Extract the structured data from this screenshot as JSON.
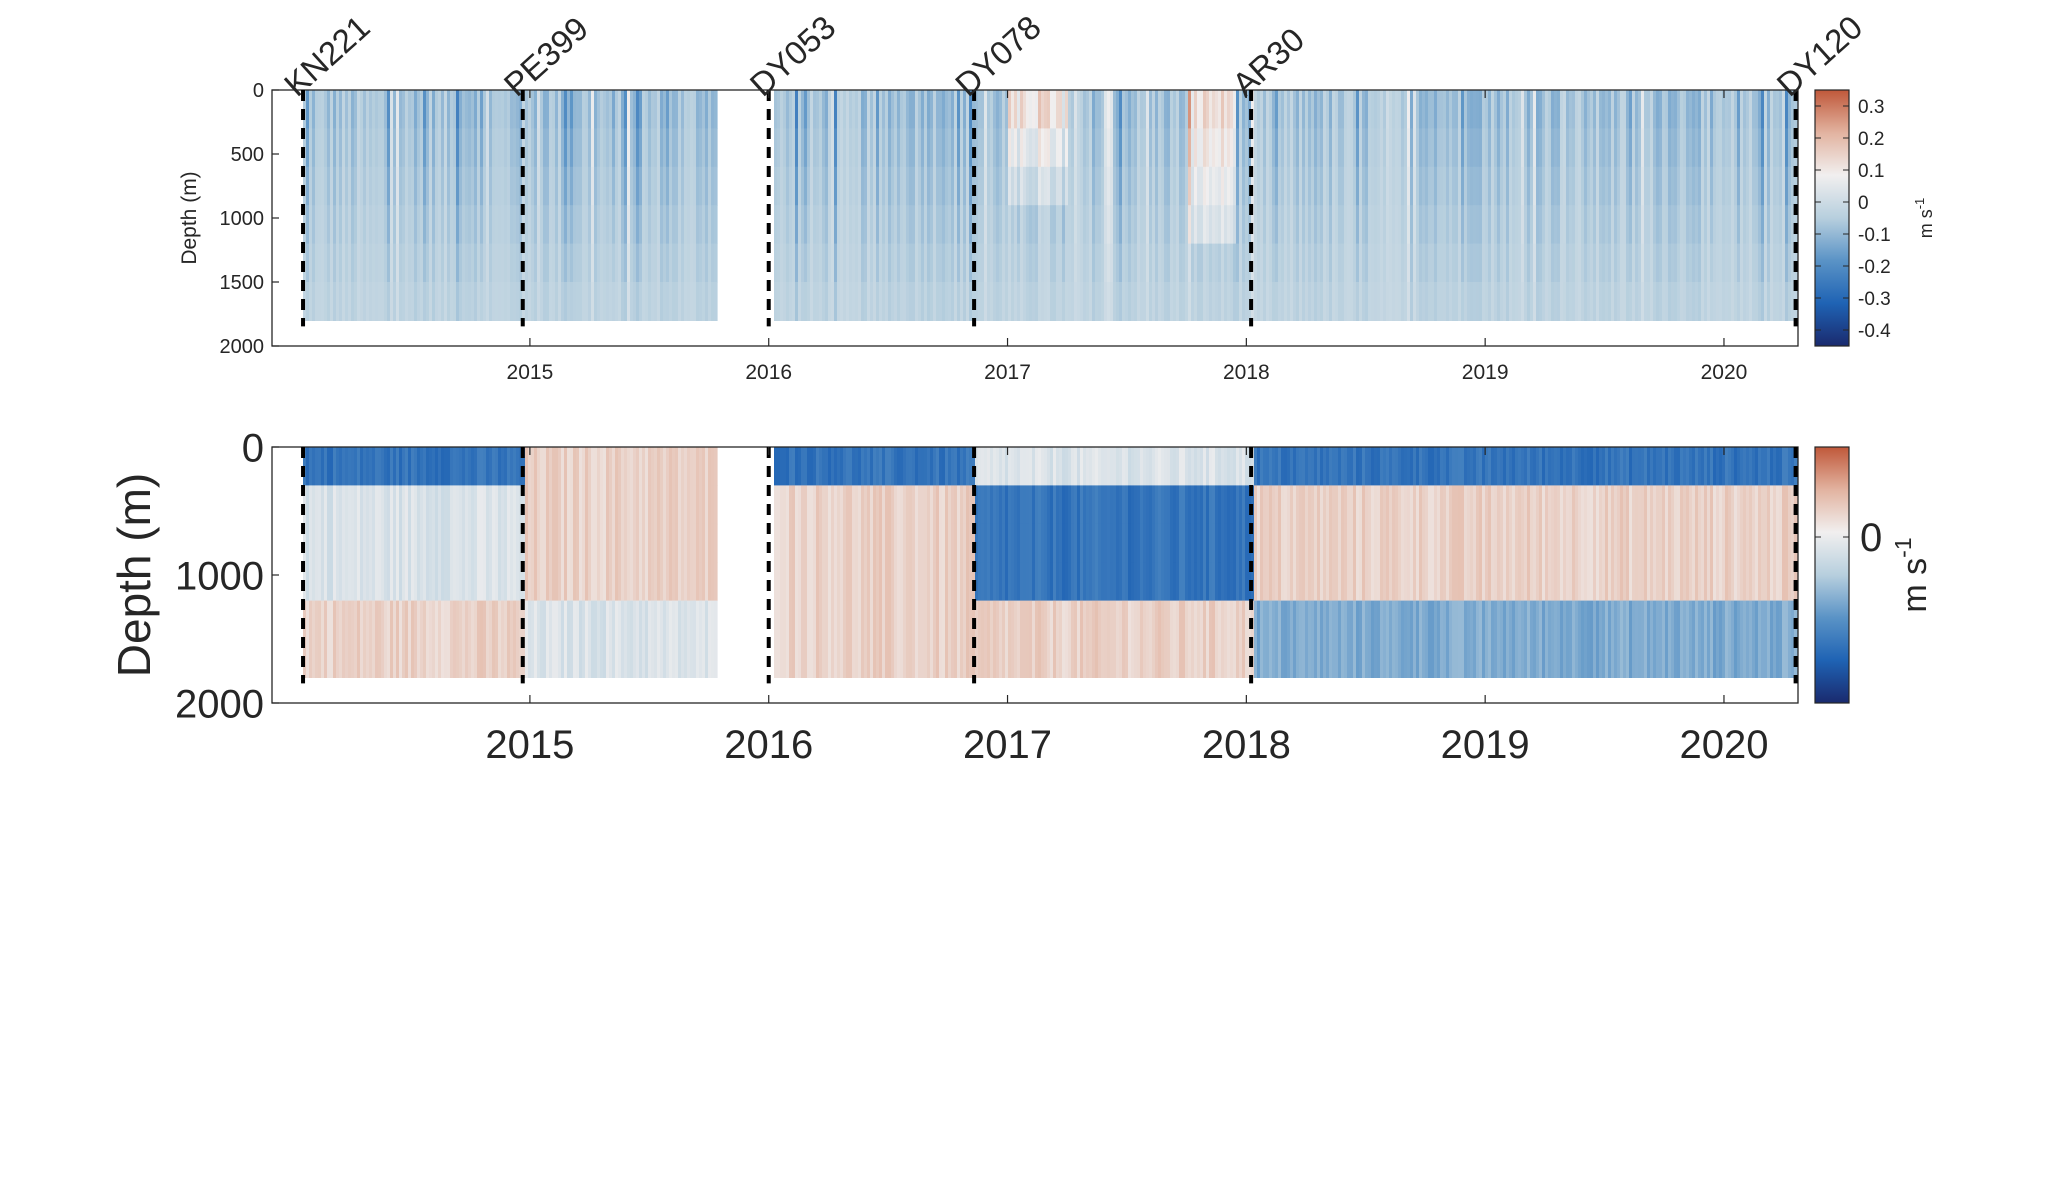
{
  "chart_data": [
    {
      "type": "heatmap",
      "title": "",
      "xlabel": "",
      "ylabel": "Depth (m)",
      "xlim": [
        2014.42,
        2020.81
      ],
      "ylim": [
        0,
        2000
      ],
      "y_reversed": true,
      "x_ticks": [
        "2015",
        "2016",
        "2017",
        "2018",
        "2019",
        "2020"
      ],
      "y_ticks": [
        "0",
        "500",
        "1000",
        "1500",
        "2000"
      ],
      "data_gaps": [
        [
          2016.28,
          2016.51
        ]
      ],
      "data_max_depth_m": 1800,
      "cruises": [
        {
          "name": "KN221",
          "x": 2014.55
        },
        {
          "name": "PE399",
          "x": 2015.47
        },
        {
          "name": "DY053",
          "x": 2016.5
        },
        {
          "name": "DY078",
          "x": 2017.36
        },
        {
          "name": "AR30",
          "x": 2018.52
        },
        {
          "name": "DY120",
          "x": 2020.8
        }
      ],
      "colorbar": {
        "label": "m s",
        "label_superscript": "-1",
        "range": [
          -0.45,
          0.35
        ],
        "ticks": [
          "0.3",
          "0.2",
          "0.1",
          "0",
          "-0.1",
          "-0.2",
          "-0.3",
          "-0.4"
        ],
        "colormap": [
          "#1a2a6e",
          "#1f63b4",
          "#5a93c6",
          "#b7cfde",
          "#f1efef",
          "#e2b3a0",
          "#c0583a"
        ]
      },
      "features": [
        {
          "x_range": [
            2018.25,
            2018.45
          ],
          "depth_range": [
            0,
            1300
          ],
          "sign": "positive"
        },
        {
          "x_range": [
            2017.5,
            2017.75
          ],
          "depth_range": [
            0,
            800
          ],
          "sign": "positive"
        }
      ]
    },
    {
      "type": "heatmap",
      "title": "",
      "xlabel": "",
      "ylabel": "Depth (m)",
      "xlim": [
        2014.42,
        2020.81
      ],
      "ylim": [
        0,
        2000
      ],
      "y_reversed": true,
      "x_ticks": [
        "2015",
        "2016",
        "2017",
        "2018",
        "2019",
        "2020"
      ],
      "y_ticks": [
        "0",
        "1000",
        "2000"
      ],
      "data_gaps": [
        [
          2016.28,
          2016.51
        ]
      ],
      "data_max_depth_m": 1800,
      "cruises": [
        {
          "name": "",
          "x": 2014.55
        },
        {
          "name": "",
          "x": 2015.47
        },
        {
          "name": "",
          "x": 2016.5
        },
        {
          "name": "",
          "x": 2017.36
        },
        {
          "name": "",
          "x": 2018.52
        },
        {
          "name": "",
          "x": 2020.8
        }
      ],
      "colorbar": {
        "label": "m s",
        "label_superscript": "-1",
        "ticks": [
          "0"
        ],
        "colormap": [
          "#1a2a6e",
          "#1f63b4",
          "#5a93c6",
          "#b7cfde",
          "#f1efef",
          "#e2b3a0",
          "#c0583a"
        ]
      },
      "segments": [
        {
          "x_range": [
            2014.55,
            2015.47
          ],
          "surface": "negative",
          "interior": "weak-positive",
          "deep": "positive"
        },
        {
          "x_range": [
            2015.47,
            2016.28
          ],
          "surface": "positive",
          "interior": "positive",
          "deep": "weak-positive"
        },
        {
          "x_range": [
            2016.51,
            2017.36
          ],
          "surface": "negative",
          "interior": "positive",
          "deep": "positive"
        },
        {
          "x_range": [
            2017.36,
            2018.52
          ],
          "surface": "weak-positive",
          "interior": "negative",
          "deep": "positive"
        },
        {
          "x_range": [
            2018.52,
            2020.8
          ],
          "surface": "negative",
          "interior": "positive",
          "deep": "weak-negative"
        }
      ]
    }
  ]
}
